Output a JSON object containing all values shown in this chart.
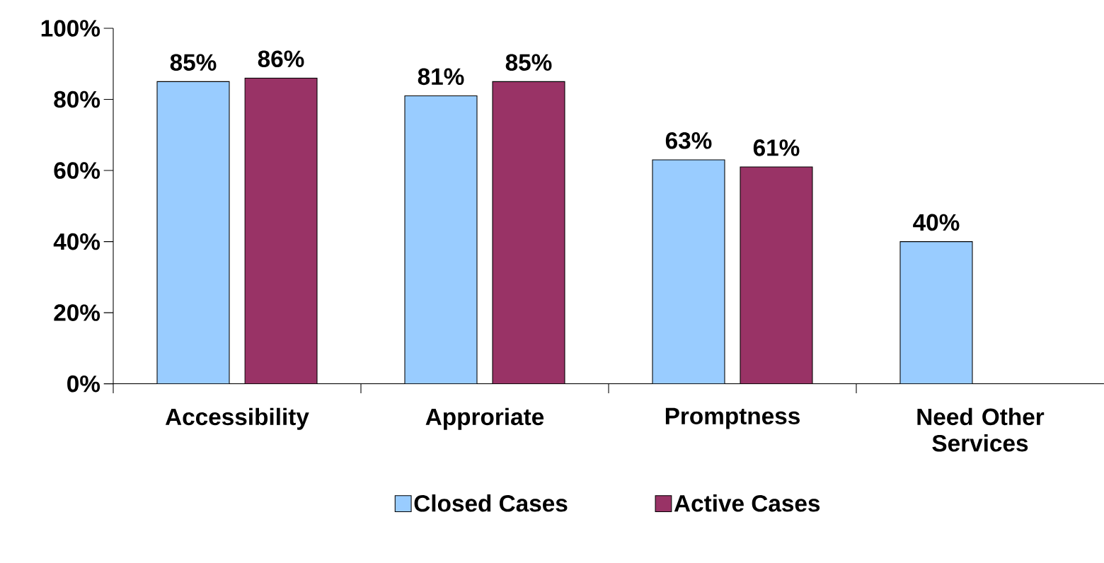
{
  "chart_data": {
    "type": "bar",
    "categories": [
      "Accessibility",
      "Approriate",
      "Promptness",
      "Need Other Services"
    ],
    "series": [
      {
        "name": "Closed Cases",
        "color": "#99ccff",
        "values": [
          85,
          81,
          63,
          40
        ],
        "value_labels": [
          "85%",
          "81%",
          "63%",
          "40%"
        ]
      },
      {
        "name": "Active Cases",
        "color": "#993366",
        "values": [
          86,
          85,
          61,
          null
        ],
        "value_labels": [
          "86%",
          "85%",
          "61%",
          null
        ]
      }
    ],
    "ylim": [
      0,
      100
    ],
    "yticks": [
      {
        "value": 0,
        "label": "0%"
      },
      {
        "value": 20,
        "label": "20%"
      },
      {
        "value": 40,
        "label": "40%"
      },
      {
        "value": 60,
        "label": "60%"
      },
      {
        "value": 80,
        "label": "80%"
      },
      {
        "value": 100,
        "label": "100%"
      }
    ],
    "legend": "bottom"
  }
}
